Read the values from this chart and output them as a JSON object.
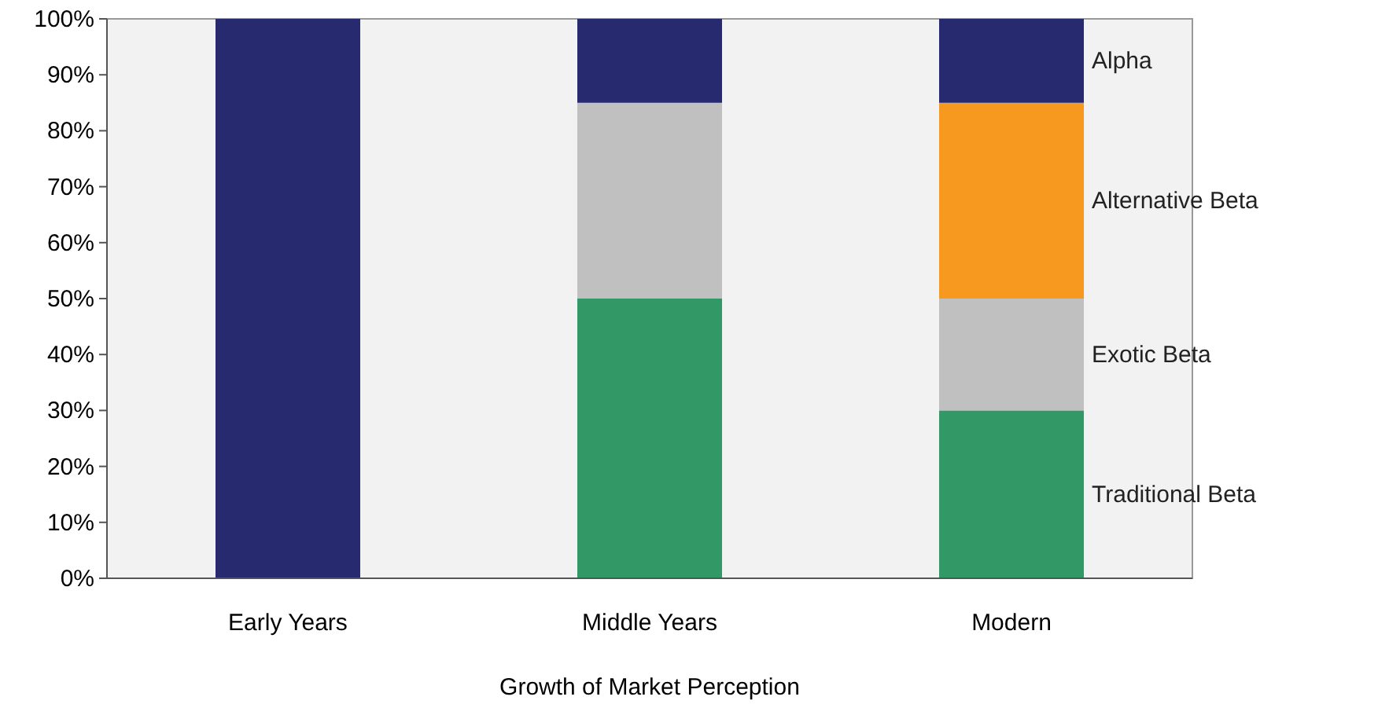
{
  "chart_data": {
    "type": "bar",
    "stacked": true,
    "xlabel": "Growth of Market Perception",
    "categories": [
      "Early Years",
      "Middle Years",
      "Modern"
    ],
    "series": [
      {
        "name": "Traditional Beta",
        "color": "#329966",
        "values": [
          null,
          50,
          30
        ]
      },
      {
        "name": "Exotic Beta",
        "color": "#c0c0c0",
        "values": [
          null,
          35,
          20
        ]
      },
      {
        "name": "Alternative Beta",
        "color": "#f7991f",
        "values": [
          null,
          null,
          35
        ]
      },
      {
        "name": "Alpha",
        "color": "#272a6e",
        "values": [
          100,
          15,
          15
        ]
      }
    ],
    "ylim": [
      0,
      100
    ],
    "yticks": [
      {
        "value": 0,
        "label": "0%"
      },
      {
        "value": 10,
        "label": "10%"
      },
      {
        "value": 20,
        "label": "20%"
      },
      {
        "value": 30,
        "label": "30%"
      },
      {
        "value": 40,
        "label": "40%"
      },
      {
        "value": 50,
        "label": "50%"
      },
      {
        "value": 60,
        "label": "60%"
      },
      {
        "value": 70,
        "label": "70%"
      },
      {
        "value": 80,
        "label": "80%"
      },
      {
        "value": 90,
        "label": "90%"
      },
      {
        "value": 100,
        "label": "100%"
      }
    ],
    "grid": false
  }
}
